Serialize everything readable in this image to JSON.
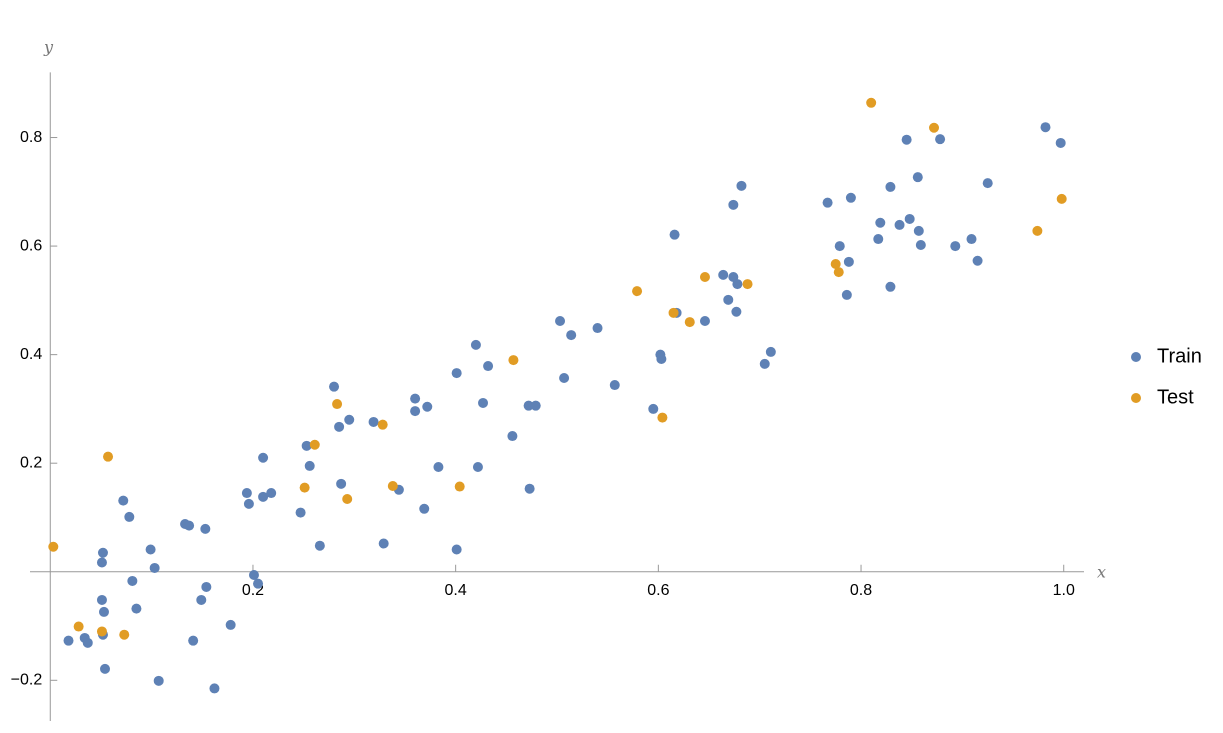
{
  "chart_data": {
    "type": "scatter",
    "xlabel": "x",
    "ylabel": "y",
    "xlim": [
      -0.02,
      1.02
    ],
    "ylim": [
      -0.275,
      0.92
    ],
    "xticks": [
      0.2,
      0.4,
      0.6,
      0.8,
      {
        "value": 1.0,
        "label": "1.0"
      }
    ],
    "yticks": [
      {
        "value": -0.2,
        "label": "−0.2"
      },
      0.2,
      0.4,
      0.6,
      0.8
    ],
    "legend": "right",
    "series": [
      {
        "name": "Train",
        "color": "#5e81b5",
        "x": [
          0.018,
          0.034,
          0.037,
          0.051,
          0.052,
          0.051,
          0.053,
          0.052,
          0.054,
          0.072,
          0.078,
          0.081,
          0.085,
          0.099,
          0.103,
          0.107,
          0.133,
          0.137,
          0.141,
          0.149,
          0.153,
          0.154,
          0.178,
          0.162,
          0.194,
          0.196,
          0.201,
          0.205,
          0.21,
          0.21,
          0.218,
          0.247,
          0.253,
          0.256,
          0.266,
          0.28,
          0.285,
          0.287,
          0.295,
          0.319,
          0.329,
          0.344,
          0.36,
          0.36,
          0.372,
          0.369,
          0.383,
          0.401,
          0.401,
          0.422,
          0.427,
          0.432,
          0.42,
          0.456,
          0.472,
          0.473,
          0.479,
          0.503,
          0.507,
          0.514,
          0.54,
          0.557,
          0.595,
          0.602,
          0.603,
          0.616,
          0.618,
          0.646,
          0.664,
          0.669,
          0.674,
          0.678,
          0.677,
          0.674,
          0.682,
          0.705,
          0.711,
          0.767,
          0.779,
          0.788,
          0.786,
          0.79,
          0.817,
          0.819,
          0.829,
          0.829,
          0.838,
          0.845,
          0.848,
          0.856,
          0.857,
          0.859,
          0.878,
          0.893,
          0.909,
          0.915,
          0.925,
          0.982,
          0.997
        ],
        "values": [
          -0.127,
          -0.122,
          -0.131,
          0.017,
          0.035,
          -0.052,
          -0.074,
          -0.116,
          -0.179,
          0.131,
          0.101,
          -0.017,
          -0.068,
          0.041,
          0.007,
          -0.201,
          0.088,
          0.085,
          -0.127,
          -0.052,
          0.079,
          -0.028,
          -0.098,
          -0.215,
          0.145,
          0.125,
          -0.006,
          -0.022,
          0.21,
          0.138,
          0.145,
          0.109,
          0.232,
          0.195,
          0.048,
          0.341,
          0.267,
          0.162,
          0.28,
          0.276,
          0.052,
          0.151,
          0.319,
          0.296,
          0.304,
          0.116,
          0.193,
          0.366,
          0.041,
          0.193,
          0.311,
          0.379,
          0.418,
          0.25,
          0.306,
          0.153,
          0.306,
          0.462,
          0.357,
          0.436,
          0.449,
          0.344,
          0.3,
          0.4,
          0.392,
          0.621,
          0.477,
          0.462,
          0.547,
          0.501,
          0.543,
          0.53,
          0.479,
          0.676,
          0.711,
          0.383,
          0.405,
          0.68,
          0.6,
          0.571,
          0.51,
          0.689,
          0.613,
          0.643,
          0.709,
          0.525,
          0.639,
          0.796,
          0.65,
          0.727,
          0.628,
          0.602,
          0.797,
          0.6,
          0.613,
          0.573,
          0.716,
          0.819,
          0.79
        ]
      },
      {
        "name": "Test",
        "color": "#e19c24",
        "x": [
          0.003,
          0.028,
          0.051,
          0.057,
          0.073,
          0.251,
          0.261,
          0.283,
          0.293,
          0.328,
          0.338,
          0.404,
          0.457,
          0.579,
          0.604,
          0.615,
          0.631,
          0.646,
          0.688,
          0.775,
          0.778,
          0.81,
          0.872,
          0.974,
          0.998
        ],
        "values": [
          0.046,
          -0.101,
          -0.11,
          0.212,
          -0.116,
          0.155,
          0.234,
          0.309,
          0.134,
          0.271,
          0.158,
          0.157,
          0.39,
          0.517,
          0.284,
          0.477,
          0.46,
          0.543,
          0.53,
          0.567,
          0.552,
          0.864,
          0.818,
          0.628,
          0.687
        ]
      }
    ]
  }
}
